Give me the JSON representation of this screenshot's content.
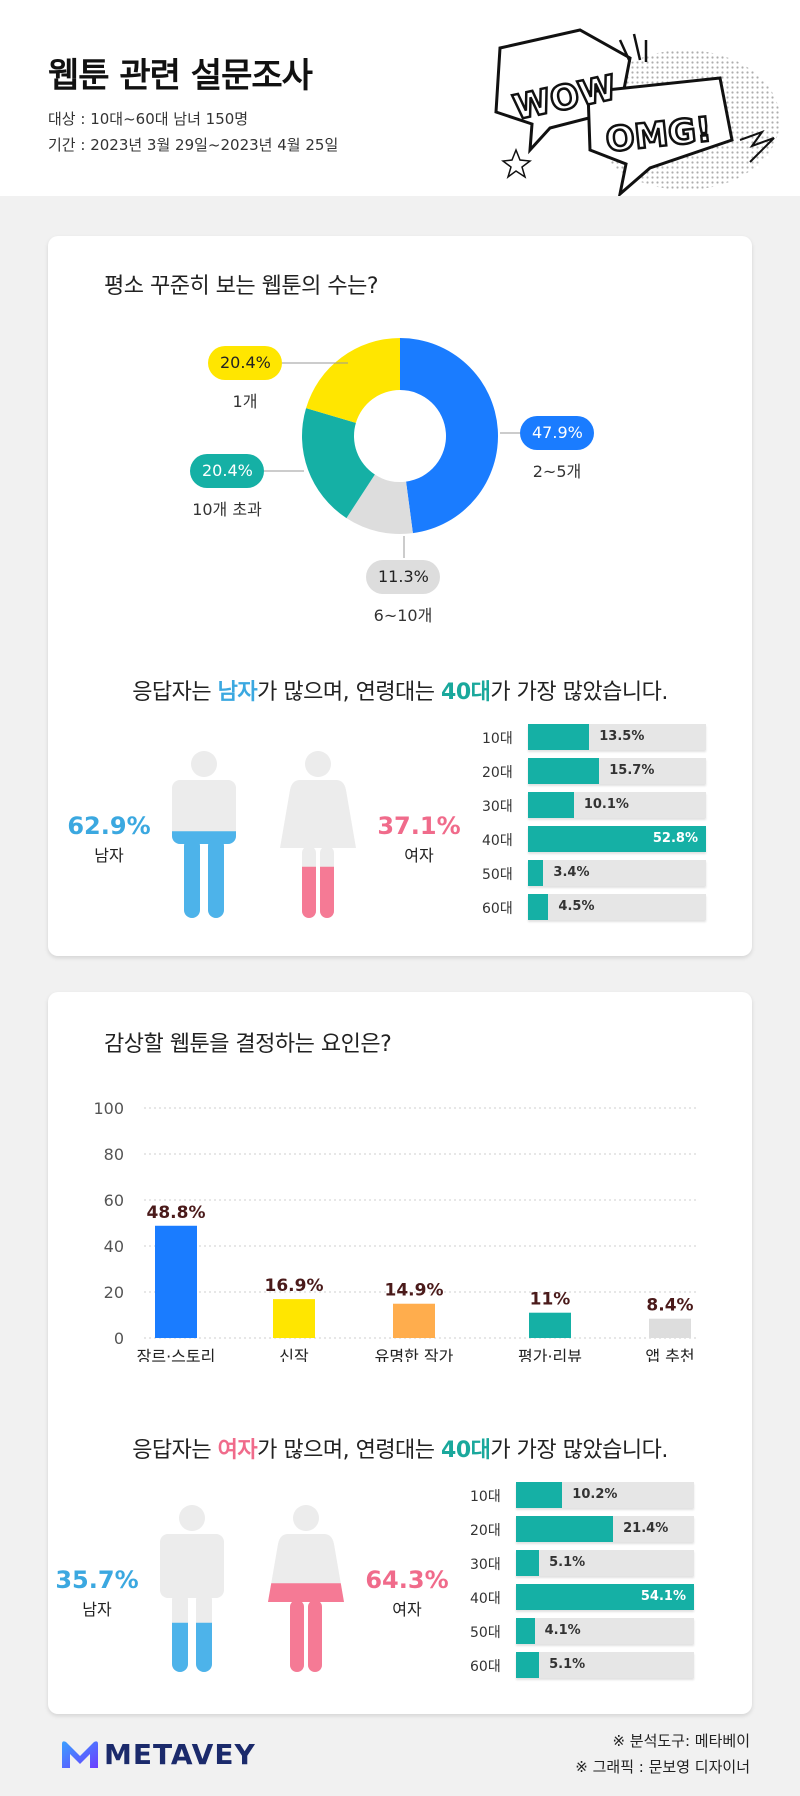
{
  "header": {
    "title": "웹툰 관련 설문조사",
    "target": "대상 : 10대~60대 남녀 150명",
    "period": "기간 : 2023년 3월 29일~2023년 4월 25일",
    "comic_words": [
      "WOW",
      "OMG!"
    ]
  },
  "section1": {
    "question": "평소 꾸준히 보는 웹툰의 수는?",
    "summary_pre": "응답자는 ",
    "summary_hl1": "남자",
    "summary_mid": "가 많으며, 연령대는 ",
    "summary_hl2": "40대",
    "summary_post": "가 가장 많았습니다.",
    "male": {
      "pct": "62.9%",
      "label": "남자",
      "fill": 0.629
    },
    "female": {
      "pct": "37.1%",
      "label": "여자",
      "fill": 0.371
    }
  },
  "section2": {
    "question": "감상할 웹툰을 결정하는 요인은?",
    "summary_pre": "응답자는 ",
    "summary_hl1": "여자",
    "summary_mid": "가 많으며, 연령대는 ",
    "summary_hl2": "40대",
    "summary_post": "가 가장 많았습니다.",
    "male": {
      "pct": "35.7%",
      "label": "남자",
      "fill": 0.357
    },
    "female": {
      "pct": "64.3%",
      "label": "여자",
      "fill": 0.643
    }
  },
  "chart_data": [
    {
      "type": "pie",
      "donut": true,
      "categories": [
        "2~5개",
        "6~10개",
        "10개 초과",
        "1개"
      ],
      "values": [
        47.9,
        11.3,
        20.4,
        20.4
      ],
      "labels": [
        "47.9%",
        "11.3%",
        "20.4%",
        "20.4%"
      ],
      "colors": [
        "#1a7cff",
        "#dddddd",
        "#15b0a5",
        "#ffe600"
      ]
    },
    {
      "type": "bar",
      "orientation": "horizontal",
      "categories": [
        "10대",
        "20대",
        "30대",
        "40대",
        "50대",
        "60대"
      ],
      "values": [
        13.5,
        15.7,
        10.1,
        52.8,
        3.4,
        4.5
      ],
      "labels": [
        "13.5%",
        "15.7%",
        "10.1%",
        "52.8%",
        "3.4%",
        "4.5%"
      ],
      "xlim": [
        0,
        52.8
      ],
      "color": "#15b0a5"
    },
    {
      "type": "bar",
      "categories": [
        "장르·스토리",
        "신작",
        "유명한 작가",
        "평가·리뷰",
        "앱 추천"
      ],
      "values": [
        48.8,
        16.9,
        14.9,
        11,
        8.4
      ],
      "labels": [
        "48.8%",
        "16.9%",
        "14.9%",
        "11%",
        "8.4%"
      ],
      "ylim": [
        0,
        100
      ],
      "yticks": [
        "0",
        "20",
        "40",
        "60",
        "80",
        "100"
      ],
      "grid": true,
      "colors": [
        "#1a7cff",
        "#ffe600",
        "#ffad4d",
        "#15b0a5",
        "#dddddd"
      ]
    },
    {
      "type": "bar",
      "orientation": "horizontal",
      "categories": [
        "10대",
        "20대",
        "30대",
        "40대",
        "50대",
        "60대"
      ],
      "values": [
        10.2,
        21.4,
        5.1,
        54.1,
        4.1,
        5.1
      ],
      "labels": [
        "10.2%",
        "21.4%",
        "5.1%",
        "54.1%",
        "4.1%",
        "5.1%"
      ],
      "xlim": [
        0,
        54.1
      ],
      "color": "#15b0a5"
    }
  ],
  "footer": {
    "credit1": "※ 분석도구: 메타베이",
    "credit2": "※ 그래픽 : 문보영 디자이너",
    "brand": "METAVEY"
  }
}
